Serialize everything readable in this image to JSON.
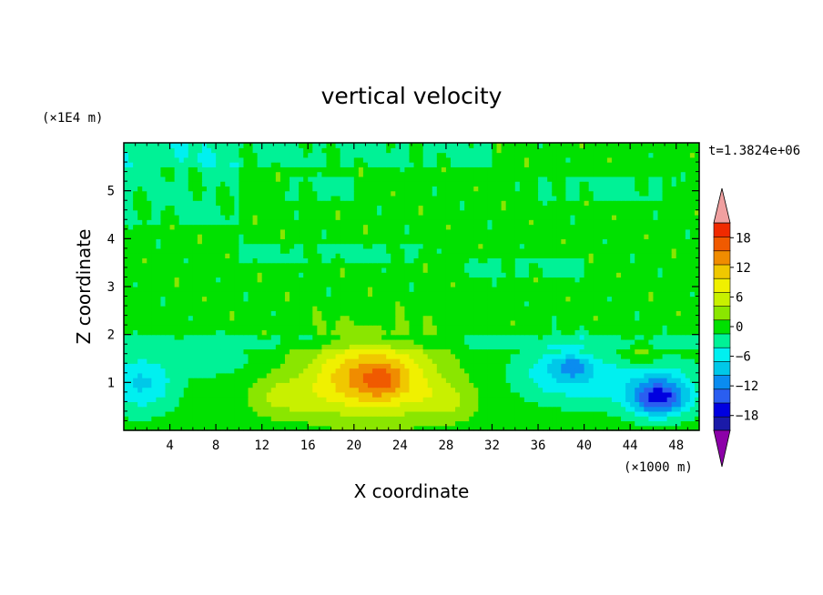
{
  "chart_data": {
    "type": "heatmap",
    "title": "vertical velocity",
    "xlabel": "X coordinate",
    "ylabel": "Z coordinate",
    "x_units": "(×1000 m)",
    "y_units": "(×1E4 m)",
    "time_label": "t=1.3824e+06",
    "xlim": [
      0,
      50
    ],
    "ylim": [
      0,
      6
    ],
    "x_ticks": [
      4,
      8,
      12,
      16,
      20,
      24,
      28,
      32,
      36,
      40,
      44,
      48
    ],
    "x_tick_labels": [
      "4",
      "8",
      "12",
      "16",
      "20",
      "24",
      "28",
      "32",
      "36",
      "40",
      "44",
      "48"
    ],
    "y_ticks": [
      1,
      2,
      3,
      4,
      5
    ],
    "y_tick_labels": [
      "1",
      "2",
      "3",
      "4",
      "5"
    ],
    "colorbar": {
      "levels": [
        -21,
        -18,
        -15,
        -12,
        -9,
        -6,
        -3,
        0,
        3,
        6,
        9,
        12,
        15,
        18,
        21
      ],
      "tick_values": [
        -18,
        -12,
        -6,
        0,
        6,
        12,
        18
      ],
      "tick_labels": [
        "−18",
        "−12",
        "−6",
        "0",
        "6",
        "12",
        "18"
      ],
      "colors": [
        "#6a00a8",
        "#1a1aa8",
        "#0000e0",
        "#2a5ef0",
        "#0a8cf0",
        "#00c8e8",
        "#00f0f0",
        "#00f296",
        "#00e100",
        "#8ae600",
        "#c8f000",
        "#f0f000",
        "#f0c800",
        "#f08c00",
        "#f05a00",
        "#f02a00",
        "#f0a0a0"
      ],
      "under_color": "#8c00a8",
      "over_color": "#f0a0a0"
    },
    "field": {
      "background": 1.5,
      "blobs": [
        {
          "x": 21.5,
          "z": 1.1,
          "amp": 15.5,
          "sx": 5.2,
          "sz": 0.75
        },
        {
          "x": 22.5,
          "z": 1.05,
          "amp": 4.0,
          "sx": 1.6,
          "sz": 0.3
        },
        {
          "x": 14.0,
          "z": 0.7,
          "amp": 5.0,
          "sx": 3.0,
          "sz": 0.4
        },
        {
          "x": 28.0,
          "z": 0.6,
          "amp": 4.5,
          "sx": 2.5,
          "sz": 0.4
        },
        {
          "x": 1.5,
          "z": 1.0,
          "amp": -8.0,
          "sx": 3.0,
          "sz": 0.6
        },
        {
          "x": 8.0,
          "z": 1.5,
          "amp": -4.0,
          "sx": 3.0,
          "sz": 0.35
        },
        {
          "x": 38.0,
          "z": 1.2,
          "amp": -7.0,
          "sx": 4.0,
          "sz": 0.55
        },
        {
          "x": 39.0,
          "z": 1.35,
          "amp": -6.0,
          "sx": 1.5,
          "sz": 0.22
        },
        {
          "x": 46.5,
          "z": 0.65,
          "amp": -12.5,
          "sx": 2.4,
          "sz": 0.35
        },
        {
          "x": 47.0,
          "z": 0.9,
          "amp": -5.0,
          "sx": 3.0,
          "sz": 0.5
        },
        {
          "x": 45.0,
          "z": 1.6,
          "amp": 4.0,
          "sx": 1.5,
          "sz": 0.25
        },
        {
          "x": 44.0,
          "z": 1.0,
          "amp": -4.0,
          "sx": 5.0,
          "sz": 0.6
        }
      ],
      "cool_patches": [
        {
          "x0": 0,
          "x1": 32,
          "z0": 5.55,
          "z1": 6.0
        },
        {
          "x0": 0,
          "x1": 10,
          "z0": 4.3,
          "z1": 6.0
        },
        {
          "x0": 14,
          "x1": 20,
          "z0": 4.8,
          "z1": 5.3
        },
        {
          "x0": 36,
          "x1": 48,
          "z0": 4.8,
          "z1": 5.3
        },
        {
          "x0": 10,
          "x1": 26,
          "z0": 3.5,
          "z1": 3.9
        },
        {
          "x0": 0,
          "x1": 50,
          "z0": 1.75,
          "z1": 2.05
        },
        {
          "x0": 30,
          "x1": 40,
          "z0": 3.2,
          "z1": 3.6
        }
      ]
    }
  }
}
